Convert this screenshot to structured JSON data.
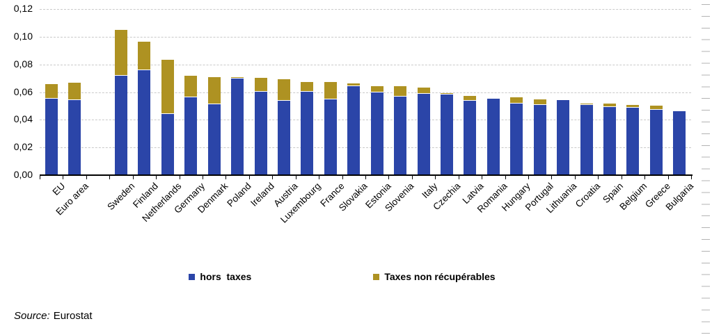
{
  "chart_data": {
    "type": "bar",
    "stacked": true,
    "categories": [
      "EU",
      "Euro area",
      "Sweden",
      "Finland",
      "Netherlands",
      "Germany",
      "Denmark",
      "Poland",
      "Ireland",
      "Austria",
      "Luxembourg",
      "France",
      "Slovakia",
      "Estonia",
      "Slovenia",
      "Italy",
      "Czechia",
      "Latvia",
      "Romania",
      "Hungary",
      "Portugal",
      "Lithuania",
      "Croatia",
      "Spain",
      "Belgium",
      "Greece",
      "Bulgaria"
    ],
    "series": [
      {
        "name": "hors  taxes",
        "color": "#2b45a8",
        "values": [
          0.055,
          0.054,
          0.072,
          0.076,
          0.044,
          0.056,
          0.051,
          0.07,
          0.0605,
          0.0535,
          0.0605,
          0.0545,
          0.0645,
          0.06,
          0.0565,
          0.059,
          0.058,
          0.0535,
          0.055,
          0.0515,
          0.0505,
          0.054,
          0.0505,
          0.049,
          0.0485,
          0.047,
          0.046
        ]
      },
      {
        "name": "Taxes non récupérables",
        "color": "#ae9222",
        "values": [
          0.011,
          0.013,
          0.033,
          0.0205,
          0.0395,
          0.016,
          0.02,
          0.001,
          0.01,
          0.016,
          0.007,
          0.013,
          0.002,
          0.0045,
          0.008,
          0.0045,
          0.0015,
          0.0035,
          0,
          0.0045,
          0.004,
          0,
          0.001,
          0.0025,
          0.002,
          0.003,
          0
        ]
      }
    ],
    "title": "",
    "xlabel": "",
    "ylabel": "",
    "ylim": [
      0,
      0.12
    ],
    "y_tick_step": 0.02,
    "y_tick_labels": [
      "0,00",
      "0,02",
      "0,04",
      "0,06",
      "0,08",
      "0,10",
      "0,12"
    ],
    "decimal_separator": ",",
    "grid": "horizontal-dashed",
    "legend_position": "bottom",
    "gap_after_index": 1
  },
  "source": {
    "label": "Source:",
    "value": "Eurostat"
  }
}
